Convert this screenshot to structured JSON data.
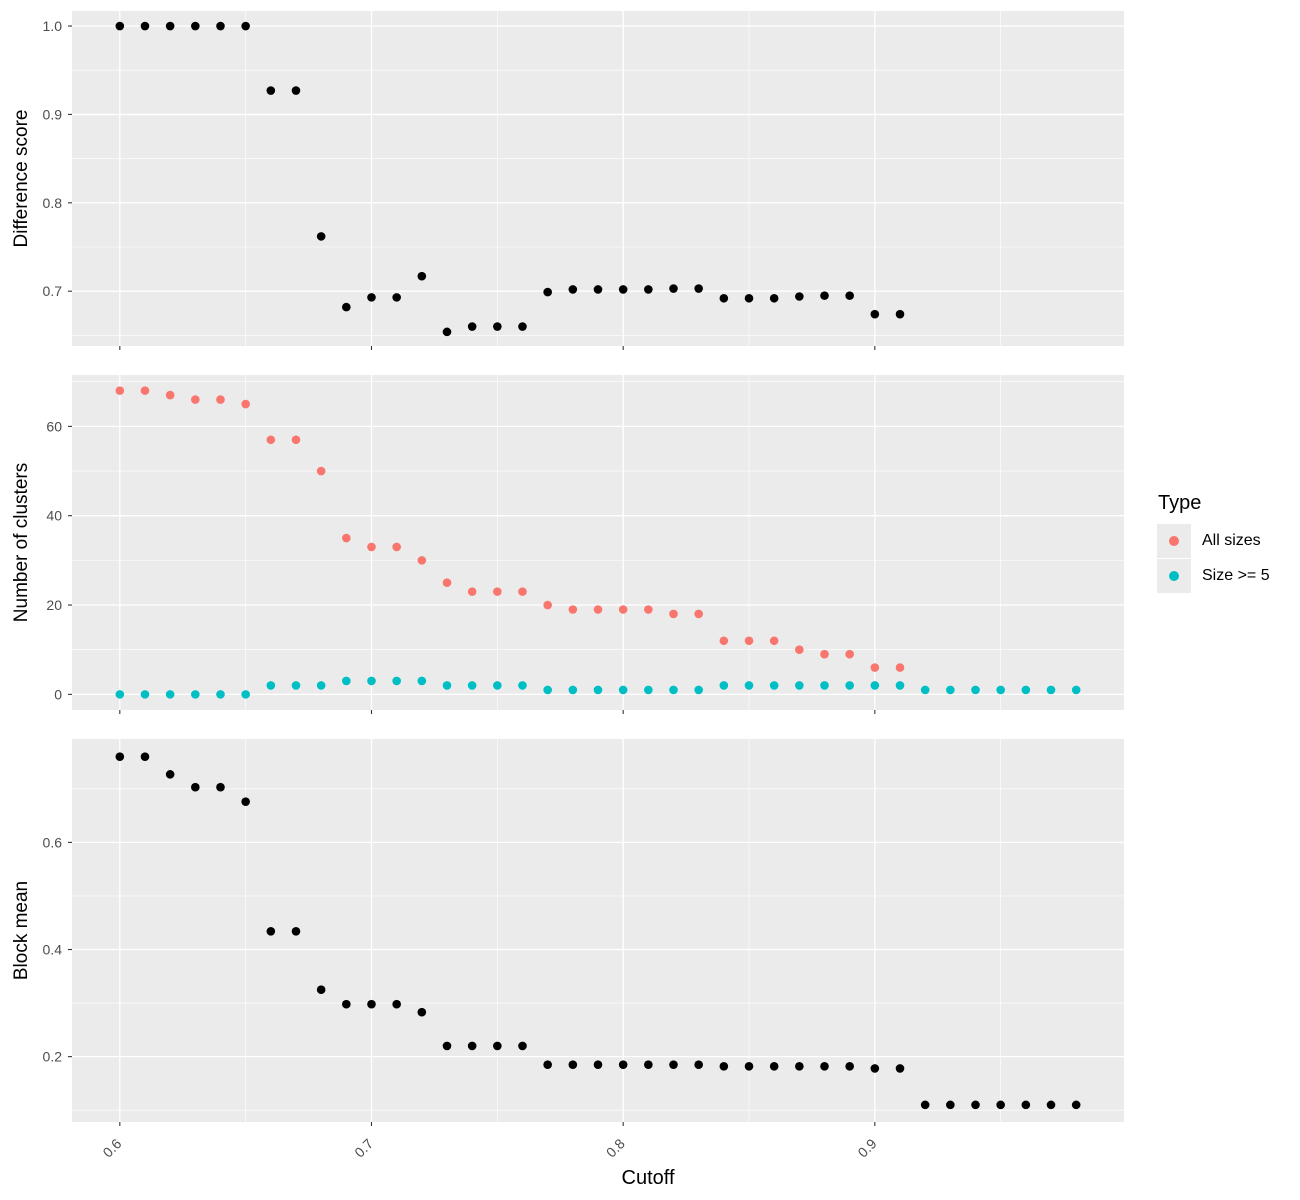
{
  "chart_data": {
    "type": "scatter",
    "xlabel": "Cutoff",
    "x_ticks": [
      "0.6",
      "0.7",
      "0.8",
      "0.9"
    ],
    "xlim": [
      0.581,
      0.999
    ],
    "facets": [
      {
        "ylabel": "Difference score",
        "ylim": [
          0.638,
          1.017
        ],
        "y_ticks": [
          "0.7",
          "0.8",
          "0.9",
          "1.0"
        ],
        "series": [
          {
            "color": "#000000",
            "x": [
              0.6,
              0.61,
              0.62,
              0.63,
              0.64,
              0.65,
              0.66,
              0.67,
              0.68,
              0.69,
              0.7,
              0.71,
              0.72,
              0.73,
              0.74,
              0.75,
              0.76,
              0.77,
              0.78,
              0.79,
              0.8,
              0.81,
              0.82,
              0.83,
              0.84,
              0.85,
              0.86,
              0.87,
              0.88,
              0.89,
              0.9,
              0.91
            ],
            "y": [
              1.0,
              1.0,
              1.0,
              1.0,
              1.0,
              1.0,
              0.927,
              0.927,
              0.762,
              0.682,
              0.693,
              0.693,
              0.717,
              0.654,
              0.66,
              0.66,
              0.66,
              0.699,
              0.702,
              0.702,
              0.702,
              0.702,
              0.703,
              0.703,
              0.692,
              0.692,
              0.692,
              0.694,
              0.695,
              0.695,
              0.674,
              0.674
            ]
          }
        ]
      },
      {
        "ylabel": "Number of clusters",
        "ylim": [
          -3.5,
          71.5
        ],
        "y_ticks": [
          "0",
          "20",
          "40",
          "60"
        ],
        "series": [
          {
            "name": "All sizes",
            "color": "#F8766D",
            "x": [
              0.6,
              0.61,
              0.62,
              0.63,
              0.64,
              0.65,
              0.66,
              0.67,
              0.68,
              0.69,
              0.7,
              0.71,
              0.72,
              0.73,
              0.74,
              0.75,
              0.76,
              0.77,
              0.78,
              0.79,
              0.8,
              0.81,
              0.82,
              0.83,
              0.84,
              0.85,
              0.86,
              0.87,
              0.88,
              0.89,
              0.9,
              0.91
            ],
            "y": [
              68,
              68,
              67,
              66,
              66,
              65,
              57,
              57,
              50,
              35,
              33,
              33,
              30,
              25,
              23,
              23,
              23,
              20,
              19,
              19,
              19,
              19,
              18,
              18,
              12,
              12,
              12,
              10,
              9,
              9,
              6,
              6
            ]
          },
          {
            "name": "Size >= 5",
            "color": "#00BFC4",
            "x": [
              0.6,
              0.61,
              0.62,
              0.63,
              0.64,
              0.65,
              0.66,
              0.67,
              0.68,
              0.69,
              0.7,
              0.71,
              0.72,
              0.73,
              0.74,
              0.75,
              0.76,
              0.77,
              0.78,
              0.79,
              0.8,
              0.81,
              0.82,
              0.83,
              0.84,
              0.85,
              0.86,
              0.87,
              0.88,
              0.89,
              0.9,
              0.91,
              0.92,
              0.93,
              0.94,
              0.95,
              0.96,
              0.97,
              0.98
            ],
            "y": [
              0,
              0,
              0,
              0,
              0,
              0,
              2,
              2,
              2,
              3,
              3,
              3,
              3,
              2,
              2,
              2,
              2,
              1,
              1,
              1,
              1,
              1,
              1,
              1,
              2,
              2,
              2,
              2,
              2,
              2,
              2,
              2,
              1,
              1,
              1,
              1,
              1,
              1,
              1
            ]
          }
        ]
      },
      {
        "ylabel": "Block mean",
        "ylim": [
          0.078,
          0.793
        ],
        "y_ticks": [
          "0.2",
          "0.4",
          "0.6"
        ],
        "series": [
          {
            "color": "#000000",
            "x": [
              0.6,
              0.61,
              0.62,
              0.63,
              0.64,
              0.65,
              0.66,
              0.67,
              0.68,
              0.69,
              0.7,
              0.71,
              0.72,
              0.73,
              0.74,
              0.75,
              0.76,
              0.77,
              0.78,
              0.79,
              0.8,
              0.81,
              0.82,
              0.83,
              0.84,
              0.85,
              0.86,
              0.87,
              0.88,
              0.89,
              0.9,
              0.91,
              0.92,
              0.93,
              0.94,
              0.95,
              0.96,
              0.97,
              0.98
            ],
            "y": [
              0.76,
              0.76,
              0.727,
              0.703,
              0.703,
              0.676,
              0.434,
              0.434,
              0.325,
              0.298,
              0.298,
              0.298,
              0.283,
              0.22,
              0.22,
              0.22,
              0.22,
              0.185,
              0.185,
              0.185,
              0.185,
              0.185,
              0.185,
              0.185,
              0.182,
              0.182,
              0.182,
              0.182,
              0.182,
              0.182,
              0.178,
              0.178,
              0.11,
              0.11,
              0.11,
              0.11,
              0.11,
              0.11,
              0.11
            ]
          }
        ]
      }
    ],
    "grid": true,
    "legend": {
      "title": "Type",
      "position": "right",
      "entries": [
        {
          "label": "All sizes",
          "color": "#F8766D"
        },
        {
          "label": "Size >= 5",
          "color": "#00BFC4"
        }
      ]
    }
  }
}
